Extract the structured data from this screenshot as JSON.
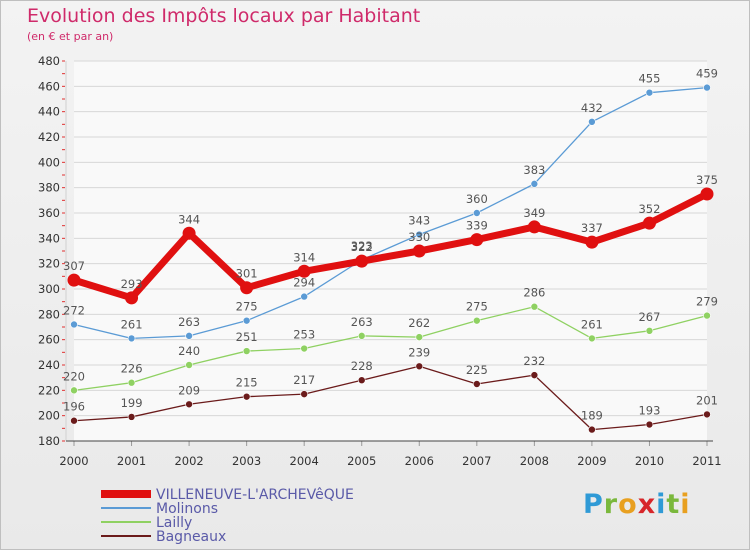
{
  "header": {
    "title": "Evolution des Impôts locaux par Habitant",
    "subtitle": "(en € et par an)"
  },
  "logo": {
    "text": "Proxiti",
    "letter_colors": [
      "#2f9ad6",
      "#7ab83c",
      "#e8a020",
      "#d7262a",
      "#2f9ad6",
      "#7ab83c",
      "#e8a020"
    ]
  },
  "chart_data": {
    "type": "line",
    "x": [
      "2000",
      "2001",
      "2002",
      "2003",
      "2004",
      "2005",
      "2006",
      "2007",
      "2008",
      "2009",
      "2010",
      "2011"
    ],
    "ylim": [
      180,
      480
    ],
    "yticks": [
      180,
      200,
      220,
      240,
      260,
      280,
      300,
      320,
      340,
      360,
      380,
      400,
      420,
      440,
      460,
      480
    ],
    "grid": "horizontal",
    "legend": "bottom-left",
    "series": [
      {
        "name": "VILLENEUVE-L'ARCHEVêQUE",
        "color": "#e01010",
        "values": [
          307,
          293,
          344,
          301,
          314,
          322,
          330,
          339,
          349,
          337,
          352,
          375
        ]
      },
      {
        "name": "Molinons",
        "color": "#5b9bd5",
        "values": [
          272,
          261,
          263,
          275,
          294,
          323,
          343,
          360,
          383,
          432,
          455,
          459
        ]
      },
      {
        "name": "Lailly",
        "color": "#8fd162",
        "values": [
          220,
          226,
          240,
          251,
          253,
          263,
          262,
          275,
          286,
          261,
          267,
          279
        ]
      },
      {
        "name": "Bagneaux",
        "color": "#6b1b1b",
        "values": [
          196,
          199,
          209,
          215,
          217,
          228,
          239,
          225,
          232,
          189,
          193,
          201
        ]
      }
    ]
  }
}
